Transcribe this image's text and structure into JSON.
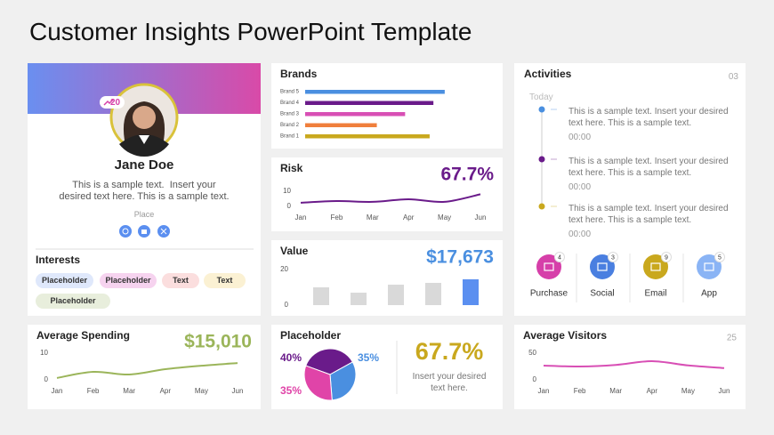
{
  "title": "Customer Insights PowerPoint Template",
  "profile": {
    "badge": 20,
    "name": "Jane Doe",
    "description": "This is a sample text.  Insert your desired text here. This is a sample text.",
    "place": "Place",
    "interests_title": "Interests",
    "interests": [
      "Placeholder",
      "Placeholder",
      "Text",
      "Text",
      "Placeholder"
    ]
  },
  "activities": {
    "title": "Activities",
    "count": "03",
    "today": "Today",
    "items": [
      {
        "text": "This is a sample text. Insert your desired text here. This is a sample text.",
        "time": "00:00",
        "color": "#4a8fe0"
      },
      {
        "text": "This is a sample text. Insert your desired text here. This is a sample text.",
        "time": "00:00",
        "color": "#6a1b8a"
      },
      {
        "text": "This is a sample text. Insert your desired text here. This is a sample text.",
        "time": "00:00",
        "color": "#c9a81e"
      }
    ],
    "channels": [
      {
        "label": "Purchase",
        "count": 4,
        "color": "#d63fa9"
      },
      {
        "label": "Social",
        "count": 3,
        "color": "#4a7fe0"
      },
      {
        "label": "Email",
        "count": 9,
        "color": "#c9a81e"
      },
      {
        "label": "App",
        "count": 5,
        "color": "#8ab4f5"
      }
    ]
  },
  "chart_data": [
    {
      "type": "hbar",
      "title": "Brands",
      "categories": [
        "Brand 5",
        "Brand 4",
        "Brand 3",
        "Brand 2",
        "Brand 1"
      ],
      "values": [
        74,
        68,
        53,
        38,
        66
      ],
      "colors": [
        "#4a8fe0",
        "#6a1b8a",
        "#d84fb5",
        "#f07f3c",
        "#c9a81e"
      ],
      "xlim": [
        0,
        100
      ]
    },
    {
      "type": "line",
      "title": "Risk",
      "headline": "67.7%",
      "headline_color": "#6a1b8a",
      "categories": [
        "Jan",
        "Feb",
        "Mar",
        "Apr",
        "May",
        "Jun"
      ],
      "values": [
        2.4,
        3.5,
        3,
        4.7,
        3,
        8
      ],
      "color": "#6a1b8a",
      "ylim": [
        0,
        10
      ],
      "yticks": [
        0,
        10
      ]
    },
    {
      "type": "bar",
      "title": "Value",
      "headline": "$17,673",
      "headline_color": "#4a8fe0",
      "values": [
        10,
        7,
        11.5,
        12.5,
        14.5
      ],
      "colors": [
        "#d9d9d9",
        "#d9d9d9",
        "#d9d9d9",
        "#d9d9d9",
        "#5b8ff0"
      ],
      "ylim": [
        0,
        20
      ],
      "yticks": [
        0,
        20
      ]
    },
    {
      "type": "line",
      "title": "Average Spending",
      "headline": "$15,010",
      "headline_color": "#9bb55a",
      "categories": [
        "Jan",
        "Feb",
        "Mar",
        "Apr",
        "May",
        "Jun"
      ],
      "values": [
        0.7,
        3,
        2,
        4,
        5.3,
        6.3
      ],
      "color": "#9bb55a",
      "ylim": [
        0,
        10
      ],
      "yticks": [
        0,
        10
      ]
    },
    {
      "type": "pie",
      "title": "Placeholder",
      "values": [
        40,
        35,
        35
      ],
      "value_labels": [
        "40%",
        "35%",
        "35%"
      ],
      "colors": [
        "#6a1b8a",
        "#4a8fe0",
        "#e044a8"
      ],
      "headline": "67.7%",
      "headline_color": "#c9a81e",
      "note": "Insert your desired text here."
    },
    {
      "type": "line",
      "title": "Average Visitors",
      "badge": "25",
      "categories": [
        "Jan",
        "Feb",
        "Mar",
        "Apr",
        "May",
        "Jun"
      ],
      "values": [
        26.7,
        25,
        28,
        35,
        27,
        22
      ],
      "color": "#d84fb5",
      "ylim": [
        0,
        50
      ],
      "yticks": [
        0,
        50
      ]
    }
  ]
}
